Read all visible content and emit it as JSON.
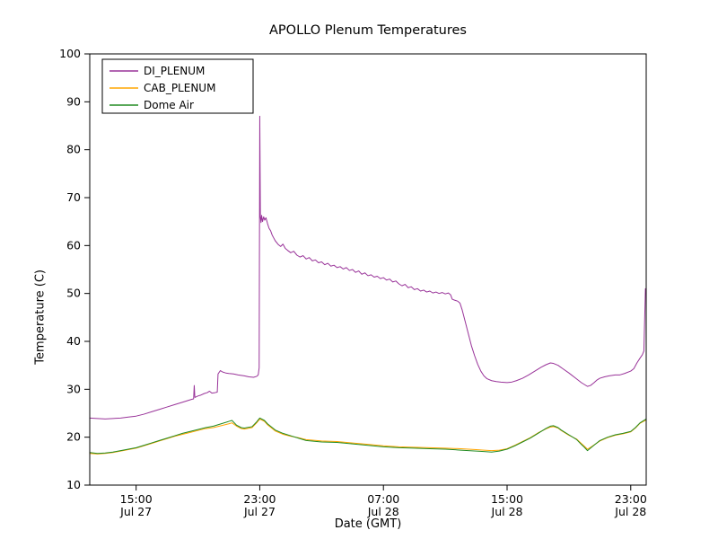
{
  "chart_data": {
    "type": "line",
    "title": "APOLLO Plenum Temperatures",
    "xlabel": "Date (GMT)",
    "ylabel": "Temperature (C)",
    "grid": false,
    "legend_position": "upper left",
    "xlim": [
      0,
      36
    ],
    "ylim": [
      10,
      100
    ],
    "x_unit_note": "hours after Jul 27 12:00 GMT",
    "x_ticks": [
      {
        "x": 3,
        "time": "15:00",
        "date": "Jul 27"
      },
      {
        "x": 11,
        "time": "23:00",
        "date": "Jul 27"
      },
      {
        "x": 19,
        "time": "07:00",
        "date": "Jul 28"
      },
      {
        "x": 27,
        "time": "15:00",
        "date": "Jul 28"
      },
      {
        "x": 35,
        "time": "23:00",
        "date": "Jul 28"
      }
    ],
    "y_ticks": [
      10,
      20,
      30,
      40,
      50,
      60,
      70,
      80,
      90,
      100
    ],
    "series": [
      {
        "name": "DI_PLENUM",
        "color": "#993399",
        "points": [
          [
            0,
            24.0
          ],
          [
            0.5,
            23.9
          ],
          [
            1,
            23.8
          ],
          [
            1.5,
            23.9
          ],
          [
            2,
            24.0
          ],
          [
            2.5,
            24.2
          ],
          [
            3,
            24.4
          ],
          [
            3.5,
            24.8
          ],
          [
            4,
            25.3
          ],
          [
            4.5,
            25.8
          ],
          [
            5,
            26.3
          ],
          [
            5.5,
            26.8
          ],
          [
            6,
            27.3
          ],
          [
            6.3,
            27.6
          ],
          [
            6.6,
            27.9
          ],
          [
            6.72,
            28.0
          ],
          [
            6.76,
            30.8
          ],
          [
            6.8,
            28.3
          ],
          [
            7.0,
            28.6
          ],
          [
            7.2,
            28.8
          ],
          [
            7.4,
            29.1
          ],
          [
            7.6,
            29.3
          ],
          [
            7.75,
            29.6
          ],
          [
            7.9,
            29.2
          ],
          [
            8.1,
            29.3
          ],
          [
            8.25,
            29.4
          ],
          [
            8.3,
            33.2
          ],
          [
            8.45,
            33.9
          ],
          [
            8.6,
            33.6
          ],
          [
            8.8,
            33.4
          ],
          [
            9,
            33.3
          ],
          [
            9.3,
            33.2
          ],
          [
            9.6,
            33.0
          ],
          [
            10,
            32.8
          ],
          [
            10.3,
            32.6
          ],
          [
            10.6,
            32.5
          ],
          [
            10.8,
            32.7
          ],
          [
            10.9,
            33.0
          ],
          [
            10.96,
            34.5
          ],
          [
            11,
            87.0
          ],
          [
            11.04,
            66.0
          ],
          [
            11.08,
            64.8
          ],
          [
            11.12,
            66.3
          ],
          [
            11.18,
            65.0
          ],
          [
            11.25,
            66.0
          ],
          [
            11.32,
            65.3
          ],
          [
            11.4,
            65.8
          ],
          [
            11.5,
            64.6
          ],
          [
            11.6,
            63.6
          ],
          [
            11.7,
            63.1
          ],
          [
            11.8,
            62.2
          ],
          [
            11.9,
            61.6
          ],
          [
            12,
            61.0
          ],
          [
            12.2,
            60.2
          ],
          [
            12.35,
            59.8
          ],
          [
            12.5,
            60.3
          ],
          [
            12.65,
            59.4
          ],
          [
            12.8,
            59.0
          ],
          [
            13,
            58.5
          ],
          [
            13.2,
            58.8
          ],
          [
            13.4,
            58.0
          ],
          [
            13.6,
            57.6
          ],
          [
            13.8,
            57.9
          ],
          [
            14,
            57.2
          ],
          [
            14.2,
            57.5
          ],
          [
            14.4,
            56.8
          ],
          [
            14.6,
            57.0
          ],
          [
            14.8,
            56.4
          ],
          [
            15,
            56.6
          ],
          [
            15.2,
            56.0
          ],
          [
            15.4,
            56.3
          ],
          [
            15.6,
            55.7
          ],
          [
            15.8,
            55.9
          ],
          [
            16,
            55.4
          ],
          [
            16.2,
            55.6
          ],
          [
            16.4,
            55.1
          ],
          [
            16.6,
            55.4
          ],
          [
            16.8,
            54.8
          ],
          [
            17,
            55.0
          ],
          [
            17.2,
            54.4
          ],
          [
            17.4,
            54.7
          ],
          [
            17.6,
            54.0
          ],
          [
            17.8,
            54.3
          ],
          [
            18,
            53.7
          ],
          [
            18.2,
            53.9
          ],
          [
            18.4,
            53.4
          ],
          [
            18.6,
            53.6
          ],
          [
            18.8,
            53.1
          ],
          [
            19,
            53.3
          ],
          [
            19.2,
            52.8
          ],
          [
            19.4,
            53.0
          ],
          [
            19.6,
            52.4
          ],
          [
            19.8,
            52.6
          ],
          [
            20,
            52.0
          ],
          [
            20.2,
            51.6
          ],
          [
            20.4,
            51.9
          ],
          [
            20.6,
            51.2
          ],
          [
            20.8,
            51.4
          ],
          [
            21,
            50.8
          ],
          [
            21.2,
            51.0
          ],
          [
            21.4,
            50.5
          ],
          [
            21.6,
            50.7
          ],
          [
            21.8,
            50.3
          ],
          [
            22,
            50.5
          ],
          [
            22.2,
            50.1
          ],
          [
            22.4,
            50.3
          ],
          [
            22.6,
            50.0
          ],
          [
            22.8,
            50.2
          ],
          [
            23,
            49.9
          ],
          [
            23.2,
            50.1
          ],
          [
            23.35,
            49.7
          ],
          [
            23.45,
            48.8
          ],
          [
            23.6,
            48.6
          ],
          [
            23.8,
            48.4
          ],
          [
            23.95,
            48.0
          ],
          [
            24.1,
            46.5
          ],
          [
            24.3,
            44.0
          ],
          [
            24.5,
            41.5
          ],
          [
            24.7,
            39.0
          ],
          [
            24.9,
            37.0
          ],
          [
            25.1,
            35.2
          ],
          [
            25.3,
            33.8
          ],
          [
            25.5,
            32.8
          ],
          [
            25.7,
            32.2
          ],
          [
            26,
            31.8
          ],
          [
            26.3,
            31.6
          ],
          [
            26.6,
            31.5
          ],
          [
            27,
            31.4
          ],
          [
            27.3,
            31.5
          ],
          [
            27.6,
            31.8
          ],
          [
            28,
            32.3
          ],
          [
            28.4,
            33.0
          ],
          [
            28.8,
            33.8
          ],
          [
            29.2,
            34.6
          ],
          [
            29.5,
            35.1
          ],
          [
            29.8,
            35.5
          ],
          [
            30,
            35.4
          ],
          [
            30.3,
            35.0
          ],
          [
            30.6,
            34.3
          ],
          [
            31,
            33.4
          ],
          [
            31.4,
            32.4
          ],
          [
            31.8,
            31.4
          ],
          [
            32,
            31.0
          ],
          [
            32.2,
            30.6
          ],
          [
            32.4,
            30.8
          ],
          [
            32.6,
            31.3
          ],
          [
            32.8,
            31.9
          ],
          [
            33,
            32.3
          ],
          [
            33.3,
            32.6
          ],
          [
            33.6,
            32.8
          ],
          [
            34,
            33.0
          ],
          [
            34.3,
            33.0
          ],
          [
            34.6,
            33.3
          ],
          [
            35,
            33.8
          ],
          [
            35.2,
            34.3
          ],
          [
            35.4,
            35.5
          ],
          [
            35.6,
            36.5
          ],
          [
            35.75,
            37.2
          ],
          [
            35.85,
            38.0
          ],
          [
            35.95,
            51.0
          ]
        ]
      },
      {
        "name": "CAB_PLENUM",
        "color": "#ffa500",
        "points": [
          [
            0,
            16.6
          ],
          [
            0.5,
            16.5
          ],
          [
            1,
            16.6
          ],
          [
            1.5,
            16.8
          ],
          [
            2,
            17.1
          ],
          [
            2.5,
            17.4
          ],
          [
            3,
            17.7
          ],
          [
            3.5,
            18.2
          ],
          [
            4,
            18.7
          ],
          [
            4.5,
            19.2
          ],
          [
            5,
            19.7
          ],
          [
            5.5,
            20.2
          ],
          [
            6,
            20.6
          ],
          [
            6.5,
            21.0
          ],
          [
            7,
            21.4
          ],
          [
            7.5,
            21.8
          ],
          [
            8,
            22.0
          ],
          [
            8.5,
            22.4
          ],
          [
            9,
            22.8
          ],
          [
            9.2,
            23.0
          ],
          [
            9.5,
            22.3
          ],
          [
            9.8,
            21.8
          ],
          [
            10,
            21.7
          ],
          [
            10.5,
            22.0
          ],
          [
            10.8,
            23.0
          ],
          [
            11,
            23.8
          ],
          [
            11.3,
            23.3
          ],
          [
            11.5,
            22.6
          ],
          [
            12,
            21.3
          ],
          [
            12.5,
            20.6
          ],
          [
            13,
            20.2
          ],
          [
            13.5,
            19.9
          ],
          [
            14,
            19.5
          ],
          [
            15,
            19.2
          ],
          [
            16,
            19.1
          ],
          [
            17,
            18.8
          ],
          [
            18,
            18.5
          ],
          [
            19,
            18.2
          ],
          [
            20,
            18.0
          ],
          [
            21,
            17.9
          ],
          [
            22,
            17.8
          ],
          [
            23,
            17.7
          ],
          [
            24,
            17.6
          ],
          [
            25,
            17.4
          ],
          [
            25.5,
            17.3
          ],
          [
            26,
            17.2
          ],
          [
            26.5,
            17.3
          ],
          [
            27,
            17.6
          ],
          [
            27.5,
            18.3
          ],
          [
            28,
            19.1
          ],
          [
            28.5,
            19.9
          ],
          [
            29,
            20.9
          ],
          [
            29.5,
            21.7
          ],
          [
            29.8,
            22.1
          ],
          [
            30,
            22.2
          ],
          [
            30.3,
            21.9
          ],
          [
            30.5,
            21.4
          ],
          [
            31,
            20.4
          ],
          [
            31.5,
            19.6
          ],
          [
            31.8,
            18.7
          ],
          [
            32,
            18.1
          ],
          [
            32.2,
            17.5
          ],
          [
            32.5,
            18.1
          ],
          [
            33,
            19.2
          ],
          [
            33.5,
            19.9
          ],
          [
            34,
            20.4
          ],
          [
            34.5,
            20.7
          ],
          [
            35,
            21.1
          ],
          [
            35.3,
            21.9
          ],
          [
            35.6,
            22.9
          ],
          [
            36,
            23.6
          ]
        ]
      },
      {
        "name": "Dome Air",
        "color": "#228b22",
        "points": [
          [
            0,
            16.8
          ],
          [
            0.5,
            16.6
          ],
          [
            1,
            16.7
          ],
          [
            1.5,
            16.9
          ],
          [
            2,
            17.2
          ],
          [
            2.5,
            17.5
          ],
          [
            3,
            17.8
          ],
          [
            3.5,
            18.3
          ],
          [
            4,
            18.8
          ],
          [
            4.5,
            19.3
          ],
          [
            5,
            19.8
          ],
          [
            5.5,
            20.3
          ],
          [
            6,
            20.8
          ],
          [
            6.5,
            21.2
          ],
          [
            7,
            21.6
          ],
          [
            7.5,
            22.0
          ],
          [
            8,
            22.3
          ],
          [
            8.5,
            22.8
          ],
          [
            9,
            23.3
          ],
          [
            9.2,
            23.5
          ],
          [
            9.5,
            22.5
          ],
          [
            9.8,
            22.0
          ],
          [
            10,
            21.9
          ],
          [
            10.5,
            22.2
          ],
          [
            10.8,
            23.2
          ],
          [
            11,
            24.0
          ],
          [
            11.3,
            23.5
          ],
          [
            11.5,
            22.8
          ],
          [
            12,
            21.5
          ],
          [
            12.5,
            20.8
          ],
          [
            13,
            20.3
          ],
          [
            13.5,
            19.8
          ],
          [
            14,
            19.3
          ],
          [
            15,
            19.0
          ],
          [
            16,
            18.9
          ],
          [
            17,
            18.6
          ],
          [
            18,
            18.3
          ],
          [
            19,
            18.0
          ],
          [
            20,
            17.8
          ],
          [
            21,
            17.7
          ],
          [
            22,
            17.6
          ],
          [
            23,
            17.5
          ],
          [
            24,
            17.3
          ],
          [
            25,
            17.1
          ],
          [
            25.5,
            17.0
          ],
          [
            26,
            16.9
          ],
          [
            26.5,
            17.1
          ],
          [
            27,
            17.5
          ],
          [
            27.5,
            18.2
          ],
          [
            28,
            19.0
          ],
          [
            28.5,
            19.8
          ],
          [
            29,
            20.8
          ],
          [
            29.5,
            21.8
          ],
          [
            29.8,
            22.3
          ],
          [
            30,
            22.4
          ],
          [
            30.3,
            22.0
          ],
          [
            30.5,
            21.5
          ],
          [
            31,
            20.5
          ],
          [
            31.5,
            19.5
          ],
          [
            31.8,
            18.5
          ],
          [
            32,
            17.9
          ],
          [
            32.2,
            17.2
          ],
          [
            32.5,
            18.0
          ],
          [
            33,
            19.3
          ],
          [
            33.5,
            20.0
          ],
          [
            34,
            20.5
          ],
          [
            34.5,
            20.8
          ],
          [
            35,
            21.2
          ],
          [
            35.3,
            22.0
          ],
          [
            35.6,
            23.0
          ],
          [
            36,
            23.8
          ]
        ]
      }
    ]
  }
}
